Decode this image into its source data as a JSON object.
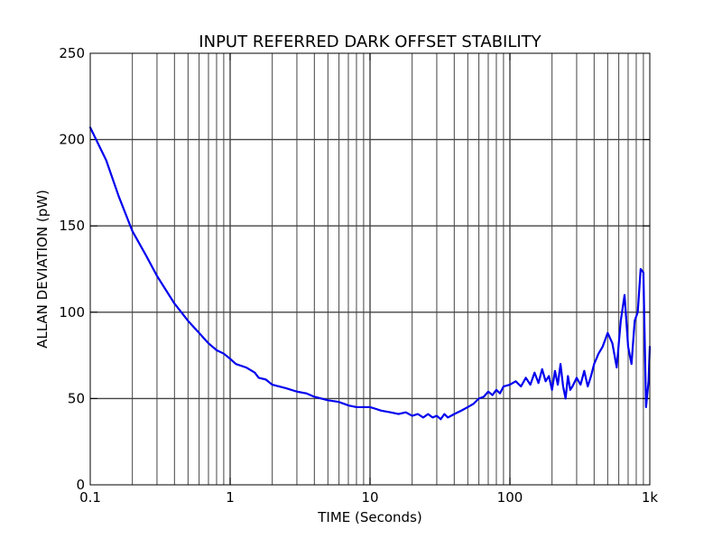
{
  "chart_data": {
    "type": "line",
    "title": "INPUT REFERRED DARK OFFSET STABILITY",
    "xlabel": "TIME (Seconds)",
    "ylabel": "ALLAN DEVIATION (pW)",
    "x_scale": "log",
    "xlim": [
      0.1,
      1000
    ],
    "ylim": [
      0,
      250
    ],
    "x_ticks": [
      {
        "value": 0.1,
        "label": "0.1"
      },
      {
        "value": 1,
        "label": "1"
      },
      {
        "value": 10,
        "label": "10"
      },
      {
        "value": 100,
        "label": "100"
      },
      {
        "value": 1000,
        "label": "1k"
      }
    ],
    "y_ticks": [
      {
        "value": 0,
        "label": "0"
      },
      {
        "value": 50,
        "label": "50"
      },
      {
        "value": 100,
        "label": "100"
      },
      {
        "value": 150,
        "label": "150"
      },
      {
        "value": 200,
        "label": "200"
      },
      {
        "value": 250,
        "label": "250"
      }
    ],
    "grid": true,
    "legend": "none",
    "line_color": "#0000ee",
    "series": [
      {
        "x": [
          0.1,
          0.13,
          0.16,
          0.2,
          0.25,
          0.3,
          0.4,
          0.5,
          0.6,
          0.7,
          0.8,
          0.9,
          1.0,
          1.1,
          1.3,
          1.5,
          1.6,
          1.8,
          2.0,
          2.5,
          3.0,
          3.5,
          4.0,
          5.0,
          6.0,
          7.0,
          8.0,
          9.0,
          10,
          11,
          12,
          14,
          16,
          18,
          20,
          22,
          24,
          26,
          28,
          30,
          32,
          34,
          36,
          38,
          40,
          45,
          50,
          55,
          60,
          65,
          70,
          75,
          80,
          85,
          90,
          100,
          110,
          120,
          130,
          140,
          150,
          160,
          170,
          180,
          190,
          200,
          210,
          220,
          230,
          240,
          250,
          260,
          270,
          280,
          300,
          320,
          340,
          360,
          380,
          400,
          430,
          460,
          500,
          540,
          580,
          620,
          660,
          700,
          740,
          780,
          820,
          860,
          900,
          940,
          980,
          1000
        ],
        "y": [
          207,
          188,
          167,
          147,
          133,
          121,
          105,
          95,
          88,
          82,
          78,
          76,
          73,
          70,
          68,
          65,
          62,
          61,
          58,
          56,
          54,
          53,
          51,
          49,
          48,
          46,
          45,
          45,
          45,
          44,
          43,
          42,
          41,
          42,
          40,
          41,
          39,
          41,
          39,
          40,
          38,
          41,
          39,
          40,
          41,
          43,
          45,
          47,
          50,
          51,
          54,
          52,
          55,
          53,
          57,
          58,
          60,
          57,
          62,
          58,
          65,
          59,
          67,
          60,
          63,
          55,
          66,
          58,
          70,
          57,
          50,
          63,
          55,
          57,
          62,
          58,
          66,
          57,
          63,
          70,
          76,
          80,
          88,
          82,
          68,
          95,
          110,
          80,
          70,
          95,
          100,
          125,
          123,
          45,
          60,
          80
        ]
      }
    ]
  }
}
